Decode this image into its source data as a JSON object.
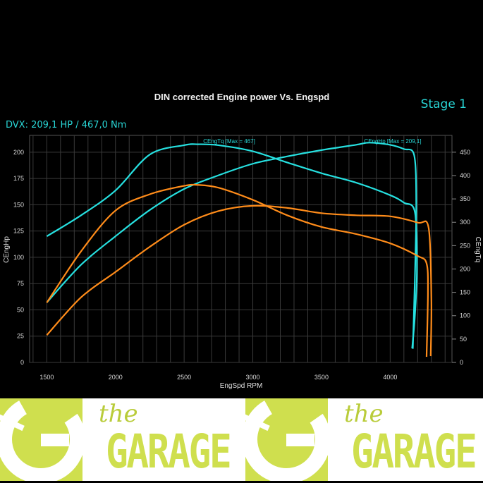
{
  "header": {
    "stage": "Stage 1",
    "summary": "DVX:  209,1 HP / 467,0 Nm"
  },
  "banner": {
    "logo_small": "the",
    "logo_big": "GARAGE"
  },
  "colors": {
    "tuned": "#26e0e0",
    "stock": "#ff8c1a",
    "grid": "#3a3a3a",
    "brand": "#cfdf4e"
  },
  "chart_data": {
    "type": "line",
    "title": "DIN corrected Engine power Vs. Engspd",
    "xlabel": "EngSpd RPM",
    "ylabel_left": "CEngHp",
    "ylabel_right": "CEngTq",
    "xlim": [
      1375,
      4450
    ],
    "ylim_left": [
      0,
      216
    ],
    "ylim_right": [
      0,
      486
    ],
    "xticks": [
      1500,
      2000,
      2500,
      3000,
      3500,
      4000
    ],
    "yticks_left": [
      0,
      25,
      50,
      75,
      100,
      125,
      150,
      175,
      200
    ],
    "yticks_right": [
      0,
      50,
      100,
      150,
      200,
      250,
      300,
      350,
      400,
      450
    ],
    "grid": true,
    "annotations": [
      "CEngTq [Max = 467]",
      "CEngHp [Max = 209,1]"
    ],
    "series": [
      {
        "name": "CEngHp",
        "variant": "tuned",
        "axis": "left",
        "color": "#26e0e0",
        "points": [
          [
            1500,
            57
          ],
          [
            1750,
            93
          ],
          [
            2000,
            120
          ],
          [
            2250,
            145
          ],
          [
            2500,
            165
          ],
          [
            2750,
            178
          ],
          [
            3000,
            189
          ],
          [
            3250,
            196
          ],
          [
            3500,
            202
          ],
          [
            3750,
            207
          ],
          [
            3850,
            209.1
          ],
          [
            4000,
            207
          ],
          [
            4100,
            203
          ],
          [
            4175,
            197
          ],
          [
            4190,
            150
          ],
          [
            4180,
            80
          ],
          [
            4165,
            13
          ]
        ]
      },
      {
        "name": "CEngTq",
        "variant": "tuned",
        "axis": "right",
        "color": "#26e0e0",
        "points": [
          [
            1500,
            270
          ],
          [
            1750,
            315
          ],
          [
            2000,
            368
          ],
          [
            2250,
            445
          ],
          [
            2500,
            465
          ],
          [
            2600,
            467
          ],
          [
            2750,
            465
          ],
          [
            3000,
            452
          ],
          [
            3250,
            428
          ],
          [
            3500,
            405
          ],
          [
            3750,
            385
          ],
          [
            4000,
            358
          ],
          [
            4100,
            342
          ],
          [
            4180,
            322
          ],
          [
            4195,
            200
          ],
          [
            4180,
            100
          ],
          [
            4160,
            30
          ]
        ]
      },
      {
        "name": "CEngHp",
        "variant": "stock",
        "axis": "left",
        "color": "#ff8c1a",
        "points": [
          [
            1500,
            26
          ],
          [
            1750,
            62
          ],
          [
            2000,
            86
          ],
          [
            2250,
            110
          ],
          [
            2500,
            131
          ],
          [
            2750,
            144
          ],
          [
            3000,
            149
          ],
          [
            3250,
            147
          ],
          [
            3500,
            142
          ],
          [
            3750,
            140
          ],
          [
            4000,
            139
          ],
          [
            4200,
            133
          ],
          [
            4280,
            128
          ],
          [
            4300,
            60
          ],
          [
            4295,
            6
          ]
        ]
      },
      {
        "name": "CEngTq",
        "variant": "stock",
        "axis": "right",
        "color": "#ff8c1a",
        "points": [
          [
            1500,
            128
          ],
          [
            1750,
            238
          ],
          [
            2000,
            325
          ],
          [
            2250,
            360
          ],
          [
            2500,
            378
          ],
          [
            2600,
            380
          ],
          [
            2750,
            374
          ],
          [
            3000,
            348
          ],
          [
            3250,
            315
          ],
          [
            3500,
            290
          ],
          [
            3750,
            275
          ],
          [
            4000,
            255
          ],
          [
            4200,
            228
          ],
          [
            4265,
            212
          ],
          [
            4275,
            150
          ],
          [
            4265,
            12
          ]
        ]
      }
    ]
  }
}
